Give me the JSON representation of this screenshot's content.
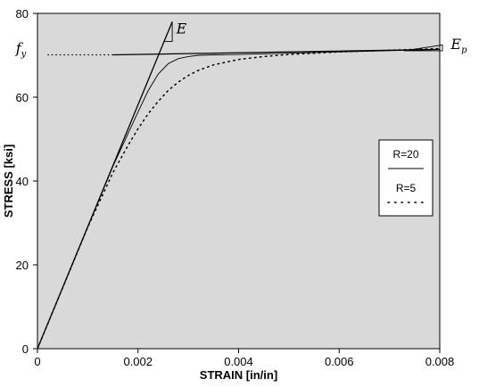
{
  "chart_data": {
    "type": "line",
    "xlabel": "STRAIN [in/in]",
    "ylabel": "STRESS [ksi]",
    "xlim": [
      0,
      0.008
    ],
    "ylim": [
      0,
      80
    ],
    "x_ticks": [
      0,
      0.002,
      0.004,
      0.006,
      0.008
    ],
    "x_tick_labels": [
      "0",
      "0.002",
      "0.004",
      "0.006",
      "0.008"
    ],
    "y_ticks": [
      0,
      20,
      40,
      60,
      80
    ],
    "y_tick_labels": [
      "0",
      "20",
      "40",
      "60",
      "80"
    ],
    "background": "#d9d9d9",
    "grid": false,
    "legend_position": "right",
    "series": [
      {
        "name": "R=20",
        "style": "solid",
        "x": [
          0,
          0.0005,
          0.001,
          0.0015,
          0.002,
          0.0022,
          0.0024,
          0.0026,
          0.0028,
          0.003,
          0.0032,
          0.0035,
          0.004,
          0.005,
          0.006,
          0.007,
          0.008
        ],
        "y": [
          0,
          14.5,
          29,
          43.5,
          56.5,
          61.5,
          65.5,
          68,
          69.2,
          69.7,
          70,
          70.1,
          70.2,
          70.5,
          70.8,
          71.1,
          71.4
        ]
      },
      {
        "name": "R=5",
        "style": "dotted",
        "x": [
          0,
          0.0005,
          0.001,
          0.0015,
          0.0018,
          0.002,
          0.0022,
          0.0024,
          0.0026,
          0.0028,
          0.003,
          0.0032,
          0.0035,
          0.004,
          0.0045,
          0.005,
          0.0055,
          0.006,
          0.0065,
          0.007,
          0.0075,
          0.008
        ],
        "y": [
          0,
          14.5,
          29,
          42,
          48.5,
          52.5,
          56,
          59,
          61.6,
          63.6,
          65.2,
          66.4,
          67.7,
          69,
          69.7,
          70.2,
          70.5,
          70.8,
          71,
          71.2,
          71.4,
          71.6
        ]
      }
    ],
    "reference_lines": [
      {
        "label": "E",
        "style": "solid",
        "x": [
          0,
          0.00268
        ],
        "y": [
          0,
          78
        ]
      },
      {
        "label": "E_p",
        "style": "solid",
        "x": [
          0.0015,
          0.008
        ],
        "y": [
          70.1,
          71.4
        ]
      },
      {
        "label": "f_y",
        "style": "dotted",
        "x": [
          0.0002,
          0.0015
        ],
        "y": [
          70.1,
          70.1
        ]
      }
    ],
    "annotations": [
      {
        "text": "E",
        "x": 0.00276,
        "y": 75.2
      },
      {
        "text": "f",
        "subscript": "y",
        "x": -0.00043,
        "y": 70.5
      },
      {
        "text": "E",
        "subscript": "p",
        "x": 0.00822,
        "y": 71.5
      }
    ],
    "legend": {
      "entries": [
        {
          "label": "R=20",
          "style": "solid"
        },
        {
          "label": "R=5",
          "style": "dotted"
        }
      ]
    }
  }
}
